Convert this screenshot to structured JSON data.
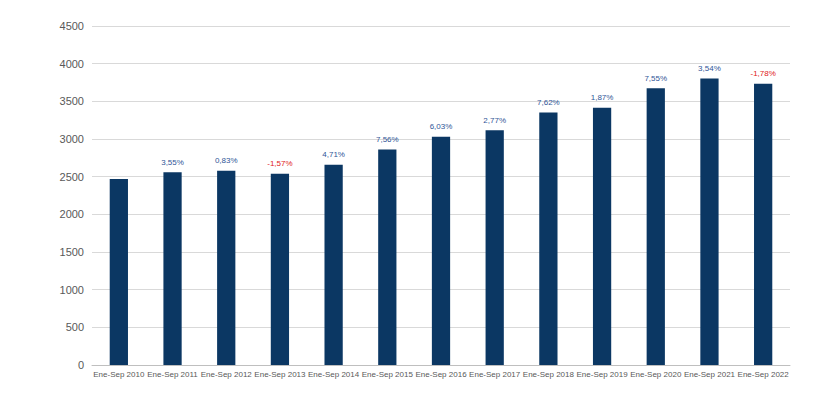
{
  "chart_data": {
    "type": "bar",
    "categories": [
      "Ene-Sep 2010",
      "Ene-Sep 2011",
      "Ene-Sep 2012",
      "Ene-Sep 2013",
      "Ene-Sep 2014",
      "Ene-Sep 2015",
      "Ene-Sep 2016",
      "Ene-Sep 2017",
      "Ene-Sep 2018",
      "Ene-Sep 2019",
      "Ene-Sep 2020",
      "Ene-Sep 2021",
      "Ene-Sep 2022"
    ],
    "values": [
      2470,
      2558,
      2579,
      2538,
      2658,
      2859,
      3031,
      3115,
      3352,
      3415,
      3673,
      3803,
      3735
    ],
    "annotations": [
      null,
      "3,55%",
      "0,83%",
      "-1,57%",
      "4,71%",
      "7,56%",
      "6,03%",
      "2,77%",
      "7,62%",
      "1,87%",
      "7,55%",
      "3,54%",
      "-1,78%"
    ],
    "color": "#0b3763",
    "ylim": [
      0,
      4500
    ],
    "yticks": [
      0,
      500,
      1000,
      1500,
      2000,
      2500,
      3000,
      3500,
      4000,
      4500
    ],
    "grid": true
  }
}
